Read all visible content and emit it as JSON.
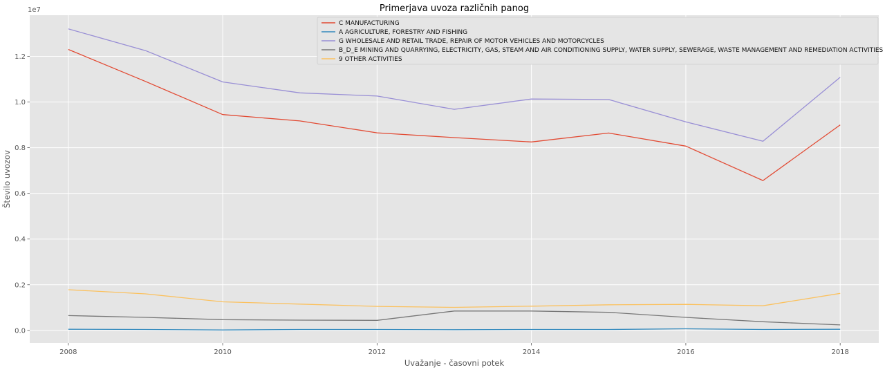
{
  "chart_data": {
    "type": "line",
    "title": "Primerjava uvoza različnih panog",
    "xlabel": "Uvažanje - časovni potek",
    "ylabel": "Število uvozov",
    "y_offset_label": "1e7",
    "x": [
      2008,
      2009,
      2010,
      2011,
      2012,
      2013,
      2014,
      2015,
      2016,
      2017,
      2018
    ],
    "xlim": [
      2007.5,
      2018.5
    ],
    "ylim": [
      -550000,
      13800000
    ],
    "x_ticks": [
      2008,
      2010,
      2012,
      2014,
      2016,
      2018
    ],
    "x_tick_labels": [
      "2008",
      "2010",
      "2012",
      "2014",
      "2016",
      "2018"
    ],
    "y_ticks": [
      0,
      2000000,
      4000000,
      6000000,
      8000000,
      10000000,
      12000000
    ],
    "y_tick_labels": [
      "0.0",
      "0.2",
      "0.4",
      "0.6",
      "0.8",
      "1.0",
      "1.2"
    ],
    "grid": true,
    "legend_position": "top-center",
    "series": [
      {
        "name": "C MANUFACTURING",
        "color": "#E24A33",
        "values": [
          12300000,
          10900000,
          9450000,
          9170000,
          8650000,
          8440000,
          8250000,
          8640000,
          8070000,
          6560000,
          9000000
        ]
      },
      {
        "name": "A AGRICULTURE, FORESTRY AND FISHING",
        "color": "#348ABD",
        "values": [
          50000,
          40000,
          20000,
          40000,
          40000,
          30000,
          40000,
          40000,
          70000,
          40000,
          50000
        ]
      },
      {
        "name": "G WHOLESALE AND RETAIL TRADE, REPAIR OF MOTOR VEHICLES AND MOTORCYCLES",
        "color": "#988ED5",
        "values": [
          13200000,
          12250000,
          10880000,
          10400000,
          10260000,
          9680000,
          10130000,
          10110000,
          9130000,
          8280000,
          11080000
        ]
      },
      {
        "name": "B_D_E  MINING AND QUARRYING, ELECTRICITY, GAS, STEAM AND AIR CONDITIONING SUPPLY, WATER SUPPLY, SEWERAGE, WASTE MANAGEMENT AND REMEDIATION ACTIVITIES",
        "color": "#777777",
        "values": [
          650000,
          570000,
          470000,
          450000,
          440000,
          850000,
          850000,
          790000,
          570000,
          380000,
          240000
        ]
      },
      {
        "name": "9 OTHER ACTIVITIES",
        "color": "#FBC15E",
        "values": [
          1780000,
          1600000,
          1250000,
          1150000,
          1050000,
          1010000,
          1060000,
          1120000,
          1140000,
          1080000,
          1620000
        ]
      }
    ]
  }
}
